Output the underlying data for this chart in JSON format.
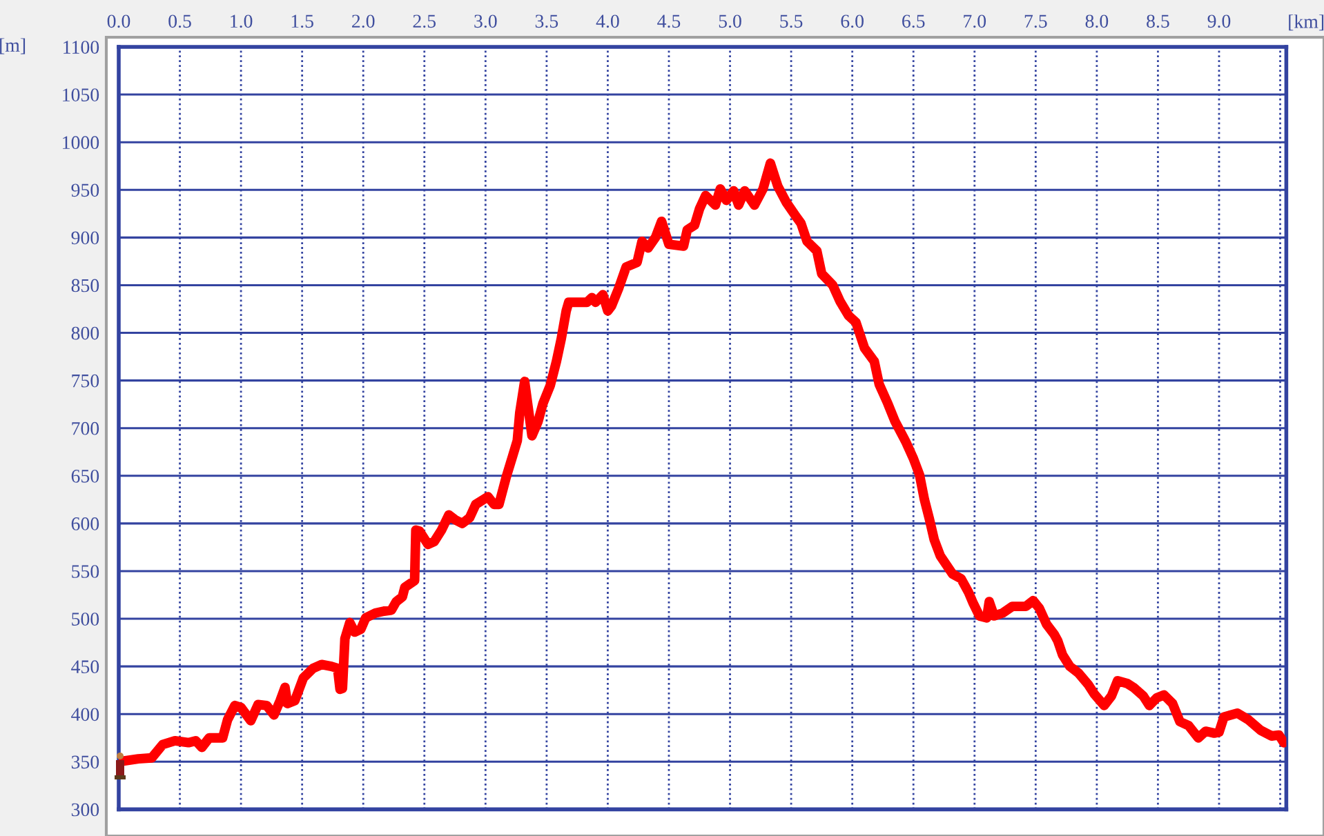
{
  "chart_data": {
    "type": "line",
    "xlabel": "[km]",
    "ylabel": "[m]",
    "x": [
      0.0,
      0.16,
      0.27,
      0.36,
      0.46,
      0.57,
      0.63,
      0.68,
      0.74,
      0.85,
      0.89,
      0.95,
      1.0,
      1.08,
      1.14,
      1.21,
      1.27,
      1.32,
      1.36,
      1.38,
      1.44,
      1.51,
      1.59,
      1.66,
      1.74,
      1.79,
      1.81,
      1.83,
      1.85,
      1.89,
      1.93,
      1.98,
      2.02,
      2.1,
      2.17,
      2.23,
      2.27,
      2.32,
      2.34,
      2.42,
      2.43,
      2.46,
      2.53,
      2.58,
      2.64,
      2.7,
      2.75,
      2.81,
      2.87,
      2.92,
      3.02,
      3.07,
      3.11,
      3.17,
      3.22,
      3.26,
      3.28,
      3.32,
      3.38,
      3.43,
      3.47,
      3.53,
      3.58,
      3.62,
      3.66,
      3.68,
      3.83,
      3.87,
      3.9,
      3.96,
      4.0,
      4.03,
      4.09,
      4.15,
      4.24,
      4.28,
      4.33,
      4.39,
      4.44,
      4.5,
      4.62,
      4.65,
      4.71,
      4.75,
      4.8,
      4.88,
      4.92,
      4.97,
      5.03,
      5.07,
      5.12,
      5.2,
      5.27,
      5.33,
      5.39,
      5.46,
      5.54,
      5.58,
      5.63,
      5.71,
      5.75,
      5.84,
      5.9,
      5.97,
      6.03,
      6.1,
      6.18,
      6.22,
      6.29,
      6.35,
      6.42,
      6.44,
      6.5,
      6.55,
      6.59,
      6.63,
      6.67,
      6.72,
      6.82,
      6.89,
      6.95,
      6.99,
      7.04,
      7.1,
      7.12,
      7.16,
      7.23,
      7.31,
      7.42,
      7.48,
      7.53,
      7.59,
      7.65,
      7.68,
      7.72,
      7.78,
      7.85,
      7.93,
      7.98,
      8.06,
      8.12,
      8.17,
      8.25,
      8.3,
      8.38,
      8.43,
      8.49,
      8.55,
      8.62,
      8.68,
      8.75,
      8.83,
      8.89,
      8.96,
      9.0,
      9.04,
      9.15,
      9.24,
      9.34,
      9.43,
      9.49,
      9.53
    ],
    "series": [
      {
        "color": "#ff0000",
        "values": [
          350,
          353,
          354,
          368,
          372,
          370,
          372,
          365,
          375,
          375,
          394,
          409,
          407,
          393,
          410,
          409,
          399,
          414,
          428,
          411,
          414,
          438,
          448,
          452,
          450,
          448,
          426,
          427,
          479,
          496,
          486,
          489,
          501,
          506,
          508,
          509,
          518,
          523,
          533,
          540,
          593,
          592,
          578,
          581,
          593,
          609,
          604,
          600,
          606,
          620,
          628,
          620,
          620,
          649,
          670,
          687,
          716,
          749,
          692,
          707,
          726,
          745,
          770,
          794,
          823,
          832,
          832,
          837,
          832,
          840,
          823,
          828,
          847,
          869,
          874,
          896,
          889,
          900,
          917,
          893,
          891,
          908,
          913,
          930,
          944,
          934,
          951,
          939,
          949,
          934,
          949,
          934,
          951,
          978,
          954,
          937,
          922,
          915,
          896,
          886,
          862,
          850,
          833,
          818,
          811,
          784,
          770,
          746,
          726,
          707,
          690,
          685,
          668,
          651,
          625,
          605,
          583,
          566,
          547,
          542,
          528,
          516,
          503,
          501,
          518,
          503,
          506,
          513,
          513,
          519,
          511,
          494,
          484,
          477,
          462,
          450,
          443,
          431,
          421,
          409,
          419,
          435,
          432,
          428,
          419,
          409,
          417,
          420,
          411,
          392,
          388,
          375,
          382,
          380,
          381,
          397,
          401,
          394,
          383,
          377,
          378,
          370
        ]
      }
    ],
    "xlim": [
      0,
      9.55
    ],
    "xticks": [
      {
        "value": 0,
        "label": "0.0"
      },
      0.5,
      {
        "value": 1,
        "label": "1.0"
      },
      1.5,
      {
        "value": 2,
        "label": "2.0"
      },
      2.5,
      {
        "value": 3,
        "label": "3.0"
      },
      3.5,
      {
        "value": 4,
        "label": "4.0"
      },
      4.5,
      {
        "value": 5,
        "label": "5.0"
      },
      5.5,
      {
        "value": 6,
        "label": "6.0"
      },
      6.5,
      {
        "value": 7,
        "label": "7.0"
      },
      7.5,
      {
        "value": 8,
        "label": "8.0"
      },
      8.5,
      {
        "value": 9,
        "label": "9.0"
      },
      {
        "value": 9.5,
        "label": null
      }
    ],
    "ylim": [
      300,
      1100
    ],
    "yticks": [
      300,
      350,
      400,
      450,
      500,
      550,
      600,
      650,
      700,
      750,
      800,
      850,
      900,
      950,
      1000,
      1050,
      1100
    ],
    "grid": true
  }
}
